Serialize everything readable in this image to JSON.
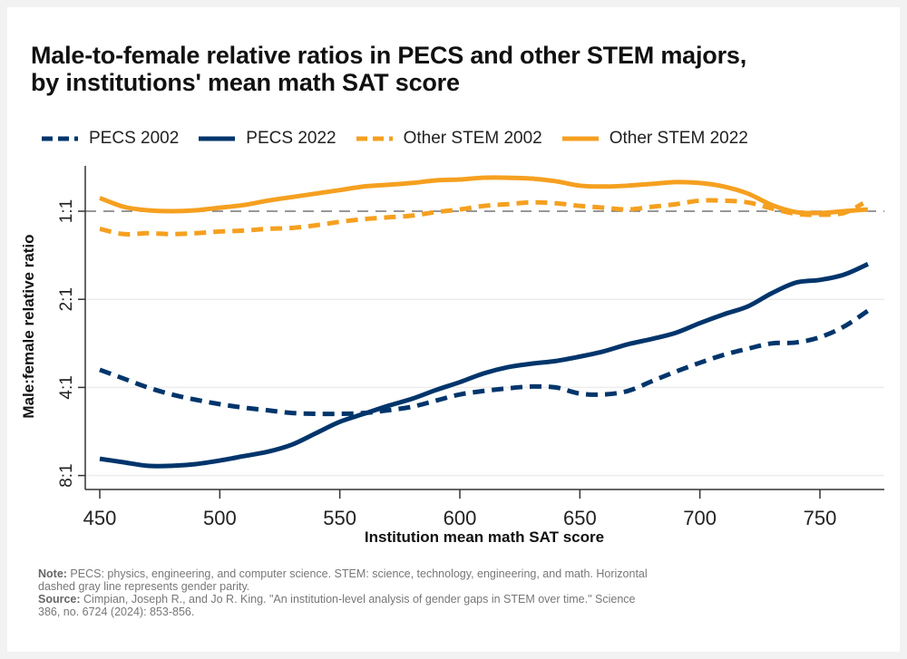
{
  "title_line1": "Male-to-female relative ratios in PECS and other STEM majors,",
  "title_line2": "by institutions' mean math SAT score",
  "notes": {
    "note_label": "Note:",
    "note_text": " PECS: physics, engineering, and computer science. STEM: science, technology, engineering, and math. Horizontal dashed gray line represents gender parity.",
    "source_label": "Source:",
    "source_text": " Cimpian, Joseph R., and Jo R. King. \"An institution-level analysis of gender gaps in STEM over time.\" Science 386, no. 6724 (2024): 853-856."
  },
  "chart_data": {
    "type": "line",
    "title": "Male-to-female relative ratios in PECS and other STEM majors, by institutions' mean math SAT score",
    "xlabel": "Institution mean math SAT score",
    "ylabel": "Male:female relative ratio",
    "x_ticks": [
      450,
      500,
      550,
      600,
      650,
      700,
      750
    ],
    "xlim": [
      443,
      775
    ],
    "y_scale": "log2 of male:female ratio (0 = 1:1, 1 = 2:1, 2 = 4:1, 3 = 8:1)",
    "y_ticks": [
      {
        "value": 0,
        "label": "1:1"
      },
      {
        "value": 1,
        "label": "2:1"
      },
      {
        "value": 2,
        "label": "4:1"
      },
      {
        "value": 3,
        "label": "8:1"
      }
    ],
    "ylim": [
      -0.5,
      3.15
    ],
    "grid": true,
    "reference_line": {
      "value": 0,
      "label": "gender parity",
      "style": "dashed",
      "color": "#777777"
    },
    "legend_position": "top",
    "series": [
      {
        "name": "PECS 2002",
        "color": "#00356b",
        "style": "dashed",
        "x": [
          450,
          460,
          470,
          480,
          490,
          500,
          510,
          520,
          530,
          540,
          550,
          560,
          570,
          580,
          590,
          600,
          610,
          620,
          630,
          640,
          650,
          660,
          670,
          680,
          690,
          700,
          710,
          720,
          730,
          740,
          750,
          760,
          770
        ],
        "values": [
          1.8,
          1.9,
          2.0,
          2.08,
          2.14,
          2.19,
          2.23,
          2.26,
          2.29,
          2.3,
          2.3,
          2.29,
          2.26,
          2.22,
          2.15,
          2.08,
          2.04,
          2.01,
          1.99,
          2.0,
          2.07,
          2.08,
          2.04,
          1.93,
          1.82,
          1.72,
          1.63,
          1.56,
          1.5,
          1.49,
          1.43,
          1.31,
          1.13
        ]
      },
      {
        "name": "PECS 2022",
        "color": "#00356b",
        "style": "solid",
        "x": [
          450,
          460,
          470,
          480,
          490,
          500,
          510,
          520,
          530,
          540,
          550,
          560,
          570,
          580,
          590,
          600,
          610,
          620,
          630,
          640,
          650,
          660,
          670,
          680,
          690,
          700,
          710,
          720,
          730,
          740,
          750,
          760,
          770
        ],
        "values": [
          2.81,
          2.85,
          2.89,
          2.89,
          2.87,
          2.83,
          2.78,
          2.73,
          2.65,
          2.52,
          2.39,
          2.3,
          2.21,
          2.13,
          2.03,
          1.94,
          1.84,
          1.77,
          1.73,
          1.7,
          1.65,
          1.59,
          1.51,
          1.45,
          1.38,
          1.27,
          1.17,
          1.08,
          0.93,
          0.81,
          0.78,
          0.72,
          0.6
        ]
      },
      {
        "name": "Other STEM 2002",
        "color": "#f5a020",
        "style": "dashed",
        "x": [
          450,
          460,
          470,
          480,
          490,
          500,
          510,
          520,
          530,
          540,
          550,
          560,
          570,
          580,
          590,
          600,
          610,
          620,
          630,
          640,
          650,
          660,
          670,
          680,
          690,
          700,
          710,
          720,
          730,
          740,
          750,
          760,
          768
        ],
        "values": [
          0.2,
          0.26,
          0.25,
          0.26,
          0.25,
          0.23,
          0.22,
          0.2,
          0.19,
          0.16,
          0.12,
          0.09,
          0.07,
          0.05,
          0.01,
          -0.02,
          -0.06,
          -0.08,
          -0.1,
          -0.09,
          -0.06,
          -0.04,
          -0.02,
          -0.05,
          -0.08,
          -0.12,
          -0.12,
          -0.1,
          -0.03,
          0.03,
          0.04,
          0.02,
          -0.09
        ]
      },
      {
        "name": "Other STEM 2022",
        "color": "#f5a020",
        "style": "solid",
        "x": [
          450,
          460,
          470,
          480,
          490,
          500,
          510,
          520,
          530,
          540,
          550,
          560,
          570,
          580,
          590,
          600,
          610,
          620,
          630,
          640,
          650,
          660,
          670,
          680,
          690,
          700,
          710,
          720,
          730,
          740,
          750,
          760,
          770
        ],
        "values": [
          -0.15,
          -0.05,
          -0.01,
          0.0,
          -0.01,
          -0.04,
          -0.07,
          -0.12,
          -0.16,
          -0.2,
          -0.24,
          -0.28,
          -0.3,
          -0.32,
          -0.35,
          -0.36,
          -0.38,
          -0.38,
          -0.37,
          -0.34,
          -0.29,
          -0.28,
          -0.29,
          -0.31,
          -0.33,
          -0.32,
          -0.28,
          -0.2,
          -0.07,
          0.01,
          0.02,
          0.0,
          -0.02
        ]
      }
    ]
  }
}
